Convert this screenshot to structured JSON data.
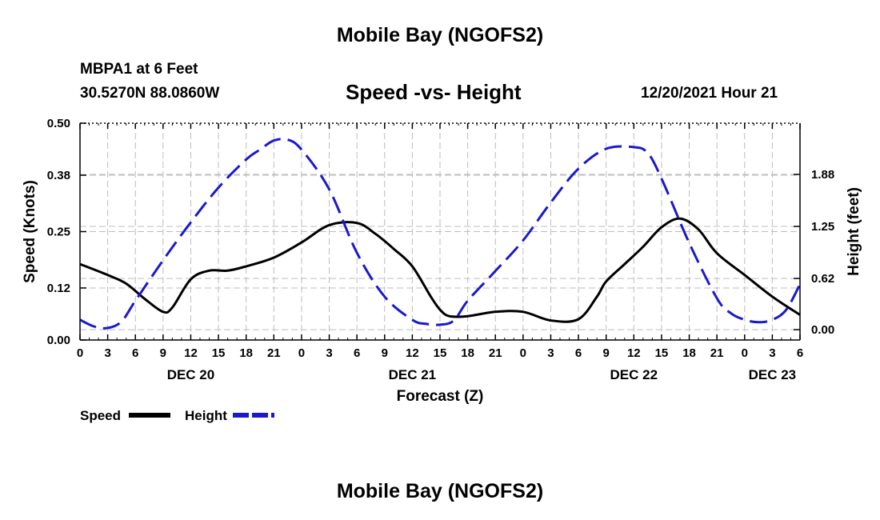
{
  "header": {
    "title": "Mobile Bay (NGOFS2)",
    "station": "MBPA1 at 6 Feet",
    "coords": "30.5270N  88.0860W",
    "subtitle": "Speed -vs- Height",
    "forecast_time": "12/20/2021 Hour 21"
  },
  "footer": {
    "title": "Mobile Bay (NGOFS2)"
  },
  "colors": {
    "speed": "#000000",
    "height": "#1a1acc",
    "grid": "#bdbdbd"
  },
  "chart_data": {
    "type": "line",
    "xlabel": "Forecast (Z)",
    "ylabel": "Speed (Knots)",
    "y2label": "Height (feet)",
    "x_range_hours": [
      0,
      78
    ],
    "ylim": [
      0,
      0.5
    ],
    "y2lim": [
      -0.125,
      2.5
    ],
    "x_ticks": {
      "hours": [
        0,
        3,
        6,
        9,
        12,
        15,
        18,
        21,
        24,
        27,
        30,
        33,
        36,
        39,
        42,
        45,
        48,
        51,
        54,
        57,
        60,
        63,
        66,
        69,
        72,
        75,
        78
      ],
      "labels": [
        "0",
        "3",
        "6",
        "9",
        "12",
        "15",
        "18",
        "21",
        "0",
        "3",
        "6",
        "9",
        "12",
        "15",
        "18",
        "21",
        "0",
        "3",
        "6",
        "9",
        "12",
        "15",
        "18",
        "21",
        "0",
        "3",
        "6"
      ]
    },
    "date_labels": [
      {
        "hour": 12,
        "label": "DEC 20"
      },
      {
        "hour": 36,
        "label": "DEC 21"
      },
      {
        "hour": 60,
        "label": "DEC 22"
      },
      {
        "hour": 75,
        "label": "DEC 23"
      }
    ],
    "y_ticks": [
      0.0,
      0.12,
      0.25,
      0.38,
      0.5
    ],
    "y_tick_labels": [
      "0.00",
      "0.12",
      "0.25",
      "0.38",
      "0.50"
    ],
    "y2_ticks": [
      0.0,
      0.62,
      1.25,
      1.88
    ],
    "y2_tick_labels": [
      "0.00",
      "0.62",
      "1.25",
      "1.88"
    ],
    "legend": {
      "placement": "bottom-left",
      "entries": [
        "Speed",
        "Height"
      ]
    },
    "series": [
      {
        "name": "Speed",
        "axis": "left",
        "style": "solid",
        "x": [
          0,
          3,
          5,
          7,
          9,
          10,
          12,
          14,
          16,
          18,
          21,
          24,
          27,
          30,
          32,
          34,
          36,
          38,
          39,
          40,
          42,
          45,
          48,
          51,
          54,
          56,
          57,
          59,
          61,
          63,
          65,
          67,
          69,
          72,
          75,
          78
        ],
        "values": [
          0.175,
          0.15,
          0.13,
          0.095,
          0.065,
          0.075,
          0.14,
          0.16,
          0.16,
          0.17,
          0.19,
          0.225,
          0.265,
          0.27,
          0.245,
          0.21,
          0.17,
          0.1,
          0.07,
          0.055,
          0.055,
          0.065,
          0.065,
          0.045,
          0.048,
          0.1,
          0.135,
          0.175,
          0.215,
          0.26,
          0.28,
          0.255,
          0.2,
          0.15,
          0.1,
          0.058
        ]
      },
      {
        "name": "Height",
        "axis": "right",
        "style": "dashed",
        "x": [
          0,
          1.5,
          3,
          4.5,
          6,
          9,
          12,
          15,
          18,
          19.5,
          21,
          22.5,
          24,
          27,
          30,
          33,
          36,
          37.5,
          39,
          40.5,
          42,
          45,
          48,
          51,
          54,
          57,
          60,
          61.5,
          63,
          66,
          69,
          70.5,
          72,
          73.5,
          75,
          76.5,
          78
        ],
        "values": [
          0.12,
          0.04,
          0.02,
          0.1,
          0.35,
          0.84,
          1.3,
          1.72,
          2.06,
          2.18,
          2.29,
          2.3,
          2.18,
          1.7,
          0.93,
          0.4,
          0.12,
          0.07,
          0.06,
          0.11,
          0.35,
          0.71,
          1.08,
          1.54,
          1.95,
          2.19,
          2.21,
          2.14,
          1.83,
          1.05,
          0.38,
          0.2,
          0.12,
          0.09,
          0.12,
          0.24,
          0.55
        ]
      }
    ]
  }
}
